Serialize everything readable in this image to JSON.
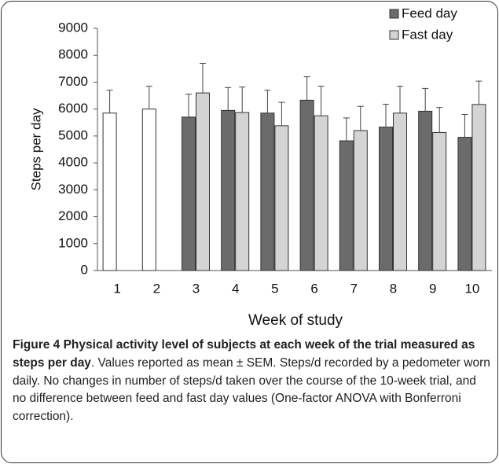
{
  "chart_data": {
    "type": "bar",
    "ylabel": "Steps per day",
    "xlabel": "Week of study",
    "categories": [
      "1",
      "2",
      "3",
      "4",
      "5",
      "6",
      "7",
      "8",
      "9",
      "10"
    ],
    "series": [
      {
        "color": "#ffffff",
        "values": [
          5850,
          6000,
          null,
          null,
          null,
          null,
          null,
          null,
          null,
          null
        ],
        "errors": [
          850,
          850,
          null,
          null,
          null,
          null,
          null,
          null,
          null,
          null
        ]
      },
      {
        "name": "Feed day",
        "color": "#6b6b6b",
        "values": [
          null,
          null,
          5700,
          5950,
          5850,
          6330,
          4820,
          5330,
          5920,
          4950
        ],
        "errors": [
          null,
          null,
          850,
          850,
          850,
          870,
          850,
          850,
          850,
          850
        ]
      },
      {
        "name": "Fast day",
        "color": "#d4d4d4",
        "values": [
          null,
          null,
          6600,
          5870,
          5380,
          5750,
          5200,
          5850,
          5130,
          6170
        ],
        "errors": [
          null,
          null,
          1100,
          950,
          870,
          1100,
          900,
          1000,
          930,
          870
        ]
      }
    ],
    "ylim": [
      0,
      9000
    ],
    "yticks": [
      0,
      1000,
      2000,
      3000,
      4000,
      5000,
      6000,
      7000,
      8000,
      9000
    ],
    "legend": "top-right"
  },
  "caption": {
    "title": "Figure 4 Physical activity level of subjects at each week of the trial measured as steps per day",
    "text": ". Values reported as mean ± SEM. Steps/d recorded by a pedometer worn daily. No changes in number of steps/d taken over the course of the 10-week trial, and no difference between feed and fast day values (One-factor ANOVA with Bonferroni correction)."
  }
}
